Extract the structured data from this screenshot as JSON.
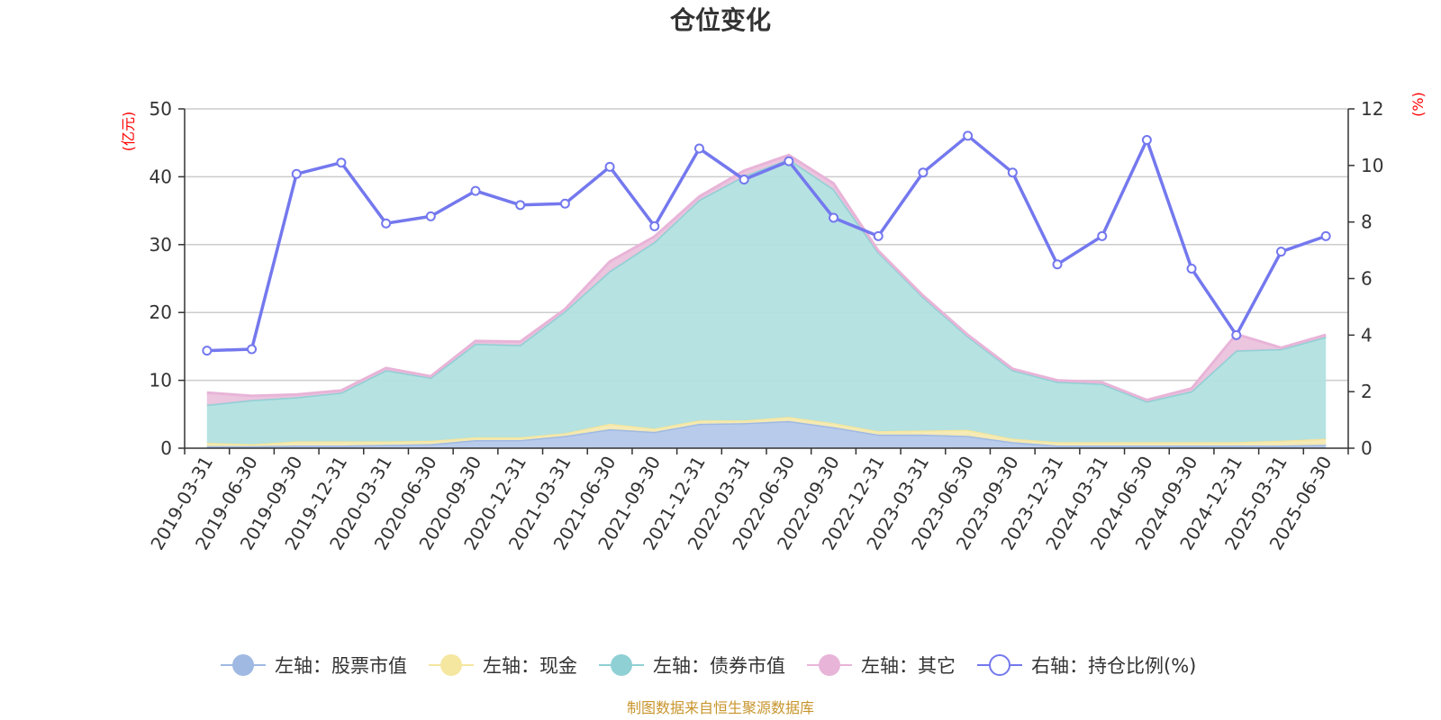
{
  "chart_data": {
    "type": "area",
    "title": "仓位变化",
    "left_axis_unit": "(亿元)",
    "right_axis_unit": "(%)",
    "categories": [
      "2019-03-31",
      "2019-06-30",
      "2019-09-30",
      "2019-12-31",
      "2020-03-31",
      "2020-06-30",
      "2020-09-30",
      "2020-12-31",
      "2021-03-31",
      "2021-06-30",
      "2021-09-30",
      "2021-12-31",
      "2022-03-31",
      "2022-06-30",
      "2022-09-30",
      "2022-12-31",
      "2023-03-31",
      "2023-06-30",
      "2023-09-30",
      "2023-12-31",
      "2024-03-31",
      "2024-06-30",
      "2024-09-30",
      "2024-12-31",
      "2025-03-31",
      "2025-06-30"
    ],
    "left_ylim": [
      0,
      50
    ],
    "left_ticks": [
      0,
      10,
      20,
      30,
      40,
      50
    ],
    "right_ylim": [
      0,
      12
    ],
    "right_ticks": [
      0,
      2,
      4,
      6,
      8,
      10,
      12
    ],
    "grid": true,
    "series": [
      {
        "name": "左轴：股票市值",
        "axis": "left",
        "kind": "stacked-area",
        "color": "#9fb9e3",
        "fill": "#b4c8ea",
        "values": [
          0.3,
          0.3,
          0.4,
          0.4,
          0.5,
          0.6,
          1.2,
          1.2,
          1.8,
          2.8,
          2.4,
          3.6,
          3.7,
          4.0,
          3.1,
          2.0,
          2.0,
          1.8,
          0.9,
          0.4,
          0.4,
          0.4,
          0.4,
          0.4,
          0.4,
          0.5
        ]
      },
      {
        "name": "左轴：现金",
        "axis": "left",
        "kind": "stacked-area",
        "color": "#f5e6a0",
        "fill": "#f6eab2",
        "values": [
          0.5,
          0.3,
          0.6,
          0.6,
          0.5,
          0.5,
          0.4,
          0.4,
          0.4,
          0.8,
          0.5,
          0.5,
          0.4,
          0.6,
          0.6,
          0.5,
          0.6,
          0.9,
          0.5,
          0.5,
          0.5,
          0.5,
          0.5,
          0.5,
          0.7,
          0.9
        ]
      },
      {
        "name": "左轴：债券市值",
        "axis": "left",
        "kind": "stacked-area",
        "color": "#8fd0d4",
        "fill": "#b2e0e0",
        "values": [
          5.6,
          6.5,
          6.5,
          7.2,
          10.5,
          9.3,
          13.8,
          13.6,
          18.0,
          22.5,
          27.5,
          32.5,
          36.0,
          38.0,
          34.5,
          26.4,
          19.7,
          13.8,
          10.1,
          8.9,
          8.6,
          6.0,
          7.5,
          13.5,
          13.5,
          15.0
        ]
      },
      {
        "name": "左轴：其它",
        "axis": "left",
        "kind": "stacked-area",
        "color": "#e8b4d8",
        "fill": "#ebc3dd",
        "values": [
          1.8,
          0.6,
          0.4,
          0.3,
          0.3,
          0.2,
          0.4,
          0.5,
          0.3,
          1.4,
          0.8,
          0.5,
          0.8,
          0.6,
          0.8,
          0.2,
          0.2,
          0.2,
          0.2,
          0.2,
          0.2,
          0.2,
          0.4,
          2.4,
          0.2,
          0.3
        ]
      },
      {
        "name": "右轴：持仓比例(%)",
        "axis": "right",
        "kind": "line",
        "color": "#7478ee",
        "values": [
          3.45,
          3.5,
          9.7,
          10.1,
          7.95,
          8.2,
          9.1,
          8.6,
          8.65,
          9.95,
          7.85,
          10.6,
          9.5,
          10.15,
          8.15,
          7.5,
          9.75,
          11.05,
          9.75,
          6.5,
          7.5,
          10.9,
          6.35,
          4.0,
          6.95,
          7.5
        ]
      }
    ]
  },
  "footer": {
    "source": "制图数据来自恒生聚源数据库"
  }
}
